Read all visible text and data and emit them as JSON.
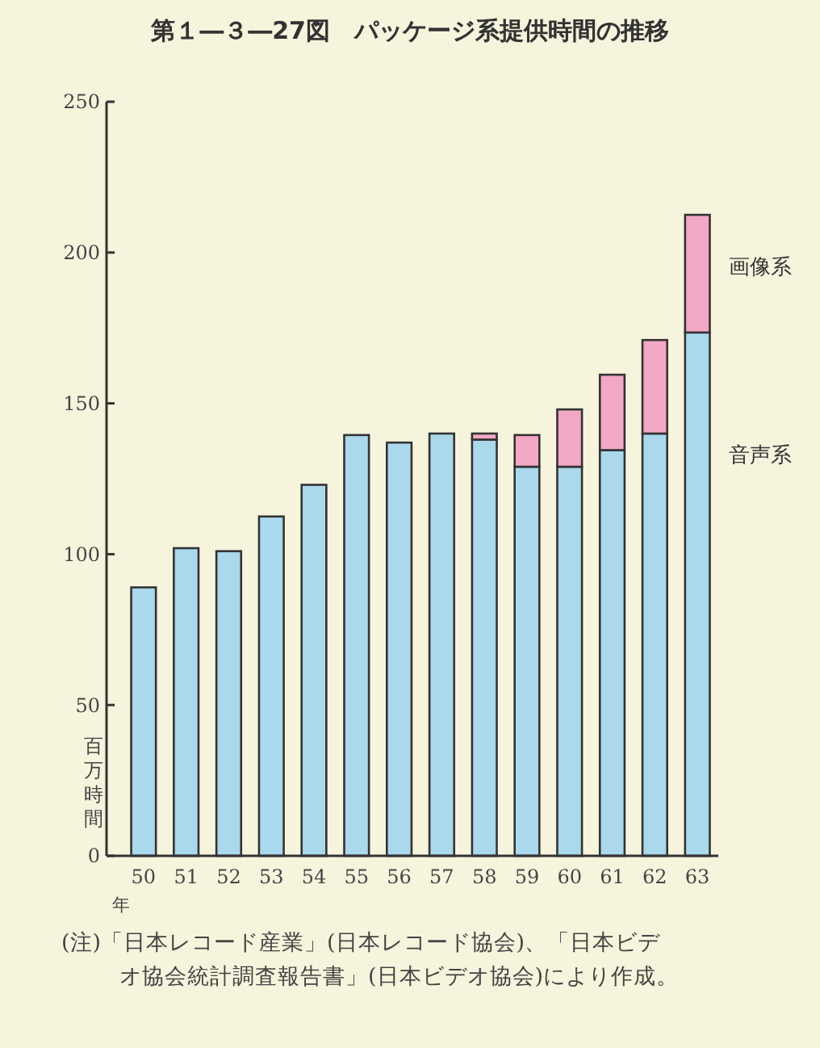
{
  "chart_data": {
    "type": "bar",
    "title": "第１―３―27図　パッケージ系提供時間の推移",
    "xlabel": "年",
    "ylabel": "百万時間",
    "categories": [
      "50",
      "51",
      "52",
      "53",
      "54",
      "55",
      "56",
      "57",
      "58",
      "59",
      "60",
      "61",
      "62",
      "63"
    ],
    "stacked": true,
    "series": [
      {
        "name": "音声系",
        "color": "#aad8ec",
        "values": [
          89,
          102,
          101,
          112.5,
          123,
          139.5,
          137,
          140,
          138,
          129,
          129,
          134.5,
          140,
          173.5
        ]
      },
      {
        "name": "画像系",
        "color": "#f2a8c4",
        "values": [
          null,
          null,
          null,
          null,
          null,
          null,
          null,
          null,
          2,
          10.5,
          19,
          25,
          31,
          39
        ]
      }
    ],
    "ylim": [
      0,
      250
    ],
    "yticks": [
      0,
      50,
      100,
      150,
      200,
      250
    ],
    "grid": false,
    "annotations": [
      "(注)「日本レコード産業」(日本レコード協会)、「日本ビデオ協会統計調査報告書」(日本ビデオ協会)により作成。"
    ]
  }
}
